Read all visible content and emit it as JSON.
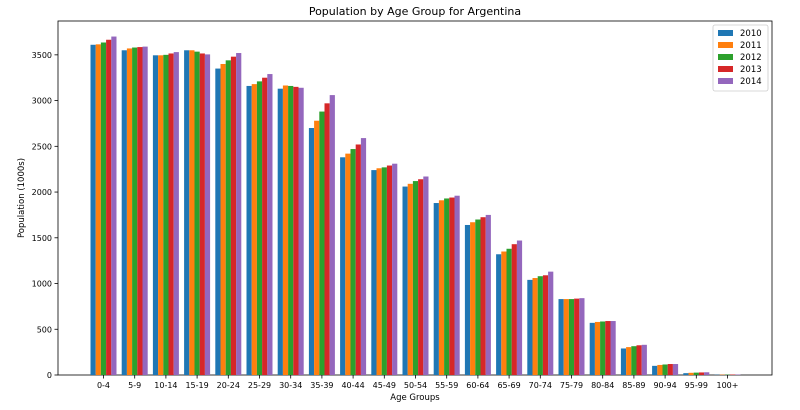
{
  "chart_data": {
    "type": "bar",
    "title": "Population by Age Group for Argentina",
    "xlabel": "Age Groups",
    "ylabel": "Population (1000s)",
    "ylim": [
      0,
      3870
    ],
    "yticks": [
      0,
      500,
      1000,
      1500,
      2000,
      2500,
      3000,
      3500
    ],
    "legend_position": "top-right",
    "categories": [
      "0-4",
      "5-9",
      "10-14",
      "15-19",
      "20-24",
      "25-29",
      "30-34",
      "35-39",
      "40-44",
      "45-49",
      "50-54",
      "55-59",
      "60-64",
      "65-69",
      "70-74",
      "75-79",
      "80-84",
      "85-89",
      "90-94",
      "95-99",
      "100+"
    ],
    "series": [
      {
        "name": "2010",
        "color": "#1f77b4",
        "values": [
          3610,
          3550,
          3495,
          3550,
          3350,
          3160,
          3130,
          2700,
          2380,
          2240,
          2060,
          1880,
          1640,
          1320,
          1040,
          830,
          570,
          290,
          100,
          20,
          3
        ]
      },
      {
        "name": "2011",
        "color": "#ff7f0e",
        "values": [
          3615,
          3570,
          3495,
          3550,
          3400,
          3180,
          3165,
          2780,
          2420,
          2260,
          2090,
          1910,
          1670,
          1350,
          1060,
          830,
          580,
          305,
          110,
          24,
          4
        ]
      },
      {
        "name": "2012",
        "color": "#2ca02c",
        "values": [
          3635,
          3580,
          3500,
          3535,
          3440,
          3210,
          3160,
          2880,
          2470,
          2270,
          2120,
          1930,
          1700,
          1380,
          1080,
          830,
          585,
          315,
          115,
          26,
          4
        ]
      },
      {
        "name": "2013",
        "color": "#d62728",
        "values": [
          3665,
          3585,
          3515,
          3515,
          3480,
          3250,
          3150,
          2970,
          2520,
          2290,
          2140,
          1940,
          1725,
          1430,
          1090,
          835,
          590,
          325,
          120,
          28,
          5
        ]
      },
      {
        "name": "2014",
        "color": "#9467bd",
        "values": [
          3700,
          3590,
          3530,
          3505,
          3520,
          3290,
          3140,
          3060,
          2590,
          2310,
          2170,
          1960,
          1750,
          1470,
          1130,
          840,
          590,
          330,
          120,
          30,
          5
        ]
      }
    ]
  }
}
